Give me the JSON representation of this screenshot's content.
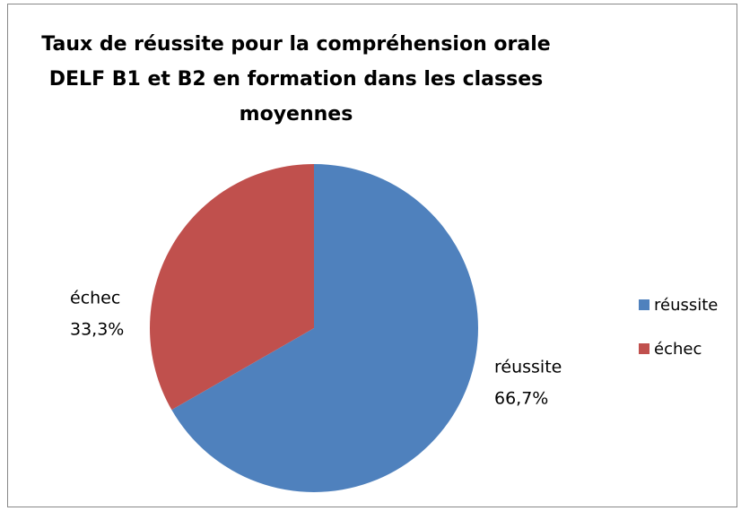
{
  "chart_data": {
    "type": "pie",
    "title": [
      "Taux de réussite pour la compréhension orale",
      "DELF B1 et B2 en formation dans les classes",
      "moyennes"
    ],
    "categories": [
      "réussite",
      "échec"
    ],
    "values": [
      66.7,
      33.3
    ],
    "value_labels": [
      "66,7%",
      "33,3%"
    ],
    "colors": [
      "#4f81bd",
      "#c0504d"
    ],
    "legend": "right"
  }
}
